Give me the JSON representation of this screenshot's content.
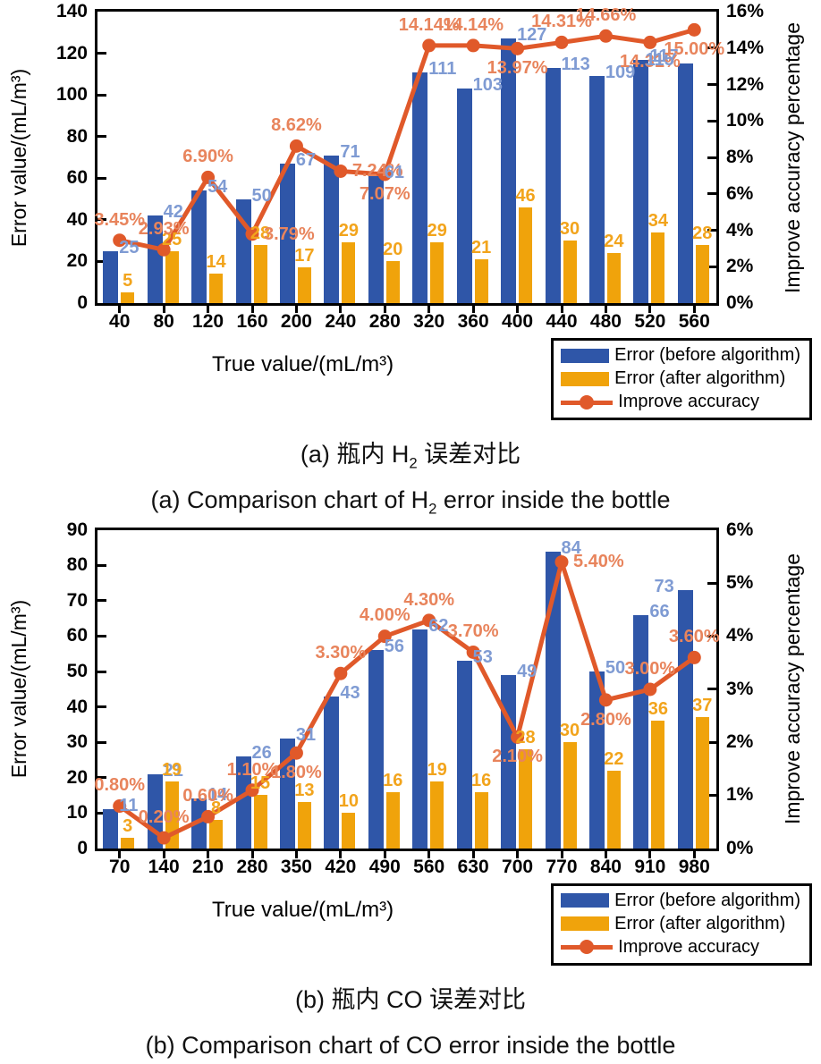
{
  "chart_data": [
    {
      "type": "bar",
      "combo": "bar+line",
      "grid": false,
      "legend_position": "bottom-right",
      "categories": [
        40,
        80,
        120,
        160,
        200,
        240,
        280,
        320,
        360,
        400,
        440,
        480,
        520,
        560
      ],
      "xlabel": "True value/(mL/m³)",
      "ylabel_left": "Error value/(mL/m³)",
      "ylabel_right": "Improve accuracy percentage",
      "ylim_left": [
        0,
        140
      ],
      "ylim_right": [
        0,
        16
      ],
      "yticks_left": [
        0,
        20,
        40,
        60,
        80,
        100,
        120,
        140
      ],
      "yticks_right": [
        "0%",
        "2%",
        "4%",
        "6%",
        "8%",
        "10%",
        "12%",
        "14%",
        "16%"
      ],
      "series": [
        {
          "name": "Error (before algorithm)",
          "type": "bar",
          "color": "#2F56A8",
          "values": [
            25,
            42,
            54,
            50,
            67,
            71,
            61,
            111,
            103,
            127,
            113,
            109,
            117,
            115
          ]
        },
        {
          "name": "Error (after algorithm)",
          "type": "bar",
          "color": "#F0A30B",
          "values": [
            5,
            25,
            14,
            28,
            17,
            29,
            20,
            29,
            21,
            46,
            30,
            24,
            34,
            28
          ]
        },
        {
          "name": "Improve accuracy",
          "type": "line",
          "axis": "right",
          "color": "#E0592A",
          "values": [
            3.45,
            2.93,
            6.9,
            3.79,
            8.62,
            7.24,
            7.07,
            14.14,
            14.14,
            13.97,
            14.31,
            14.66,
            14.31,
            15.0
          ],
          "labels": [
            "3.45%",
            "2.93%",
            "6.90%",
            "3.79%",
            "8.62%",
            "7.24%",
            "7.07%",
            "14.14%",
            "14.14%",
            "13.97%",
            "14.31%",
            "14.66%",
            "14.31%",
            "15.00%"
          ],
          "label_pos": [
            "above",
            "above",
            "above",
            "right",
            "above",
            "right",
            "below",
            "above",
            "above",
            "below",
            "above",
            "above",
            "below",
            "below"
          ]
        }
      ]
    },
    {
      "type": "bar",
      "combo": "bar+line",
      "grid": false,
      "legend_position": "bottom-right",
      "categories": [
        70,
        140,
        210,
        280,
        350,
        420,
        490,
        560,
        630,
        700,
        770,
        840,
        910,
        980
      ],
      "xlabel": "True value/(mL/m³)",
      "ylabel_left": "Error value/(mL/m³)",
      "ylabel_right": "Improve accuracy percentage",
      "ylim_left": [
        0,
        90
      ],
      "ylim_right": [
        0,
        6
      ],
      "yticks_left": [
        0,
        10,
        20,
        30,
        40,
        50,
        60,
        70,
        80,
        90
      ],
      "yticks_right": [
        "0%",
        "1%",
        "2%",
        "3%",
        "4%",
        "5%",
        "6%"
      ],
      "series": [
        {
          "name": "Error (before algorithm)",
          "type": "bar",
          "color": "#2F56A8",
          "values": [
            11,
            21,
            14,
            26,
            31,
            43,
            56,
            62,
            53,
            49,
            84,
            50,
            66,
            73
          ]
        },
        {
          "name": "Error (after algorithm)",
          "type": "bar",
          "color": "#F0A30B",
          "values": [
            3,
            19,
            8,
            15,
            13,
            10,
            16,
            19,
            16,
            28,
            30,
            22,
            36,
            37
          ]
        },
        {
          "name": "Improve accuracy",
          "type": "line",
          "axis": "right",
          "color": "#E0592A",
          "values": [
            0.8,
            0.2,
            0.6,
            1.1,
            1.8,
            3.3,
            4.0,
            4.3,
            3.7,
            2.1,
            5.4,
            2.8,
            3.0,
            3.6
          ],
          "labels": [
            "0.80%",
            "0.20%",
            "0.60%",
            "1.10%",
            "1.80%",
            "3.30%",
            "4.00%",
            "4.30%",
            "3.70%",
            "2.10%",
            "5.40%",
            "2.80%",
            "3.00%",
            "3.60%"
          ],
          "label_pos": [
            "above",
            "above",
            "above",
            "above",
            "below",
            "above",
            "above",
            "above",
            "above",
            "below",
            "right",
            "below",
            "above",
            "above"
          ]
        }
      ]
    }
  ],
  "captions": [
    {
      "cn_prefix": "(a) 瓶内 H",
      "cn_sub": "2",
      "cn_suffix": " 误差对比",
      "en_prefix": "(a) Comparison chart of H",
      "en_sub": "2",
      "en_suffix": " error inside the bottle"
    },
    {
      "cn_prefix": "(b) 瓶内 CO 误差对比",
      "cn_sub": "",
      "cn_suffix": "",
      "en_prefix": "(b) Comparison chart of CO error inside the bottle",
      "en_sub": "",
      "en_suffix": ""
    }
  ]
}
